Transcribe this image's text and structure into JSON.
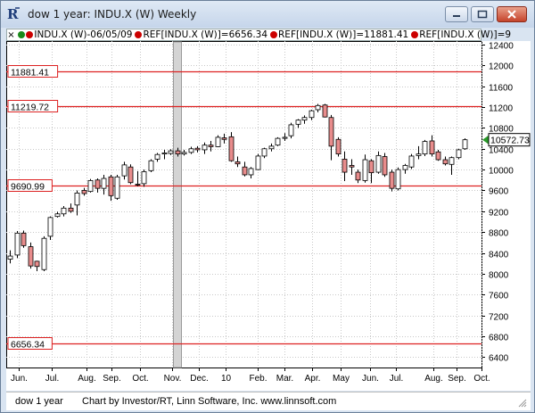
{
  "window": {
    "title": "dow 1 year: INDU.X (W) Weekly"
  },
  "legend": {
    "items": [
      {
        "text": "INDU.X (W)-06/05/09",
        "dots": [
          "#1a8a1a",
          "#cc0000"
        ]
      },
      {
        "text": "REF[INDU.X (W)]=6656.34",
        "dots": [
          "#cc0000"
        ]
      },
      {
        "text": "REF[INDU.X (W)]=11881.41",
        "dots": [
          "#cc0000"
        ]
      },
      {
        "text": "REF[INDU.X (W)]=9",
        "dots": [
          "#cc0000"
        ]
      }
    ]
  },
  "status": {
    "name": "dow 1 year",
    "credit": "Chart by Investor/RT, Linn Software, Inc. www.linnsoft.com"
  },
  "chart_data": {
    "type": "candlestick",
    "y_ticks": [
      6400,
      6800,
      7200,
      7600,
      8000,
      8400,
      8800,
      9200,
      9600,
      10000,
      10400,
      10800,
      11200,
      11600,
      12000,
      12400
    ],
    "ylim": [
      6200,
      12400
    ],
    "x_tick_labels": [
      "Jun.",
      "Jul.",
      "Aug.",
      "Sep.",
      "Oct.",
      "Nov.",
      "Dec.",
      "10",
      "Feb.",
      "Mar.",
      "Apr.",
      "May",
      "Jun.",
      "Jul.",
      "Aug.",
      "Sep.",
      "Oct."
    ],
    "reference_lines": [
      {
        "value": 11881.41,
        "label": "11881.41"
      },
      {
        "value": 11219.72,
        "label": "11219.72"
      },
      {
        "value": 9690.99,
        "label": "9690.99"
      },
      {
        "value": 6656.34,
        "label": "6656.34"
      }
    ],
    "last_price": {
      "value": 10572.73,
      "label": "10572.73"
    },
    "highlight_week_index": 25,
    "candles": [
      [
        8280,
        8450,
        8200,
        8340
      ],
      [
        8360,
        8820,
        8300,
        8780
      ],
      [
        8780,
        8830,
        8500,
        8540
      ],
      [
        8520,
        8600,
        8100,
        8150
      ],
      [
        8240,
        8250,
        8050,
        8140
      ],
      [
        8080,
        8720,
        8050,
        8680
      ],
      [
        8720,
        9100,
        8650,
        9080
      ],
      [
        9100,
        9190,
        9080,
        9150
      ],
      [
        9150,
        9300,
        9100,
        9260
      ],
      [
        9260,
        9350,
        9170,
        9200
      ],
      [
        9320,
        9600,
        9120,
        9550
      ],
      [
        9600,
        9650,
        9500,
        9540
      ],
      [
        9580,
        9820,
        9560,
        9790
      ],
      [
        9800,
        9830,
        9560,
        9640
      ],
      [
        9640,
        9900,
        9520,
        9830
      ],
      [
        9860,
        9900,
        9400,
        9500
      ],
      [
        9450,
        9900,
        9420,
        9860
      ],
      [
        9880,
        10150,
        9810,
        10090
      ],
      [
        10050,
        10100,
        9720,
        9750
      ],
      [
        9720,
        9970,
        9680,
        9710
      ],
      [
        9730,
        10000,
        9670,
        9960
      ],
      [
        9980,
        10200,
        9950,
        10170
      ],
      [
        10200,
        10320,
        10150,
        10290
      ],
      [
        10300,
        10380,
        10200,
        10320
      ],
      [
        10310,
        10390,
        10280,
        10360
      ],
      [
        10360,
        10420,
        10250,
        10300
      ],
      [
        10300,
        10380,
        10270,
        10330
      ],
      [
        10330,
        10440,
        10300,
        10400
      ],
      [
        10410,
        10450,
        10330,
        10380
      ],
      [
        10380,
        10520,
        10300,
        10470
      ],
      [
        10470,
        10550,
        10350,
        10440
      ],
      [
        10440,
        10660,
        10430,
        10620
      ],
      [
        10610,
        10690,
        10500,
        10580
      ],
      [
        10630,
        10720,
        10150,
        10170
      ],
      [
        10150,
        10250,
        10050,
        10110
      ],
      [
        10050,
        10150,
        9870,
        9900
      ],
      [
        9900,
        10050,
        9830,
        10020
      ],
      [
        10000,
        10300,
        9990,
        10260
      ],
      [
        10260,
        10420,
        10220,
        10400
      ],
      [
        10400,
        10500,
        10350,
        10450
      ],
      [
        10470,
        10620,
        10450,
        10600
      ],
      [
        10600,
        10700,
        10550,
        10620
      ],
      [
        10650,
        10900,
        10600,
        10860
      ],
      [
        10870,
        10970,
        10800,
        10950
      ],
      [
        10950,
        11040,
        10880,
        11000
      ],
      [
        11000,
        11150,
        10950,
        11130
      ],
      [
        11150,
        11260,
        11100,
        11230
      ],
      [
        11240,
        11260,
        11000,
        11010
      ],
      [
        11000,
        11050,
        10180,
        10450
      ],
      [
        10580,
        10620,
        10250,
        10300
      ],
      [
        10200,
        10350,
        9780,
        9950
      ],
      [
        10080,
        10200,
        9900,
        10050
      ],
      [
        9950,
        10000,
        9740,
        9800
      ],
      [
        9790,
        10290,
        9750,
        10190
      ],
      [
        10170,
        10200,
        9740,
        9940
      ],
      [
        9950,
        10350,
        9920,
        10270
      ],
      [
        10250,
        10320,
        9860,
        9900
      ],
      [
        9950,
        10000,
        9580,
        9640
      ],
      [
        9630,
        10040,
        9600,
        10000
      ],
      [
        10000,
        10110,
        9920,
        10080
      ],
      [
        10050,
        10300,
        10010,
        10260
      ],
      [
        10270,
        10450,
        10200,
        10300
      ],
      [
        10300,
        10570,
        10260,
        10540
      ],
      [
        10550,
        10660,
        10250,
        10300
      ],
      [
        10340,
        10380,
        10170,
        10190
      ],
      [
        10190,
        10250,
        10080,
        10110
      ],
      [
        10100,
        10250,
        9900,
        10230
      ],
      [
        10230,
        10400,
        10200,
        10380
      ],
      [
        10400,
        10600,
        10380,
        10573
      ]
    ]
  }
}
